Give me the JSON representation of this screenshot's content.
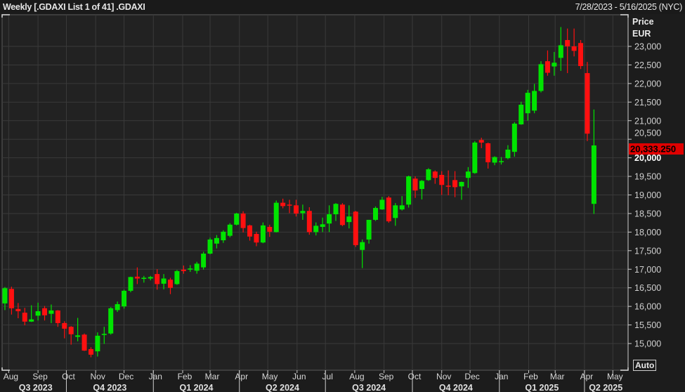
{
  "header": {
    "title": "Weekly [.GDAXI List 1 of 41] .GDAXI",
    "range": "7/28/2023 - 5/16/2025 (NYC)"
  },
  "axis": {
    "label_line1": "Price",
    "label_line2": "EUR",
    "auto_button": "Auto"
  },
  "colors": {
    "up": "#00e400",
    "down": "#ff1010",
    "background": "#1c1c1c",
    "plot": "#222222",
    "grid": "#3a3a3a",
    "price_tag": "#e00000"
  },
  "chart_data": {
    "type": "candlestick",
    "interval": "weekly",
    "start_date": "2023-07-28",
    "ylim": [
      14560,
      23680
    ],
    "yticks": [
      15000,
      15500,
      16000,
      16500,
      17000,
      17500,
      18000,
      18500,
      19000,
      19500,
      20000,
      20500,
      21000,
      21500,
      22000,
      22500,
      23000
    ],
    "ytick_labels": [
      "15,000",
      "15,500",
      "16,000",
      "16,500",
      "17,000",
      "17,500",
      "18,000",
      "18,500",
      "19,000",
      "19,500",
      "20,000",
      "20,500",
      "21,000",
      "21,500",
      "22,000",
      "22,500",
      "23,000"
    ],
    "last_price_label": "20,333.250",
    "last_price": 20333.25,
    "grid": true,
    "months": [
      {
        "label": "Aug",
        "date": "2023-08-01"
      },
      {
        "label": "Sep",
        "date": "2023-09-01"
      },
      {
        "label": "Oct",
        "date": "2023-10-01"
      },
      {
        "label": "Nov",
        "date": "2023-11-01"
      },
      {
        "label": "Dec",
        "date": "2023-12-01"
      },
      {
        "label": "Jan",
        "date": "2024-01-01"
      },
      {
        "label": "Feb",
        "date": "2024-02-01"
      },
      {
        "label": "Mar",
        "date": "2024-03-01"
      },
      {
        "label": "Apr",
        "date": "2024-04-01"
      },
      {
        "label": "May",
        "date": "2024-05-01"
      },
      {
        "label": "Jun",
        "date": "2024-06-01"
      },
      {
        "label": "Jul",
        "date": "2024-07-01"
      },
      {
        "label": "Aug",
        "date": "2024-08-01"
      },
      {
        "label": "Sep",
        "date": "2024-09-01"
      },
      {
        "label": "Oct",
        "date": "2024-10-01"
      },
      {
        "label": "Nov",
        "date": "2024-11-01"
      },
      {
        "label": "Dec",
        "date": "2024-12-01"
      },
      {
        "label": "Jan",
        "date": "2025-01-01"
      },
      {
        "label": "Feb",
        "date": "2025-02-01"
      },
      {
        "label": "Mar",
        "date": "2025-03-01"
      },
      {
        "label": "Apr",
        "date": "2025-04-01"
      },
      {
        "label": "May",
        "date": "2025-05-01"
      }
    ],
    "quarters": [
      {
        "label": "Q3 2023",
        "start": "2023-07-28",
        "end": "2023-10-01"
      },
      {
        "label": "Q4 2023",
        "start": "2023-10-01",
        "end": "2024-01-01"
      },
      {
        "label": "Q1 2024",
        "start": "2024-01-01",
        "end": "2024-04-01"
      },
      {
        "label": "Q2 2024",
        "start": "2024-04-01",
        "end": "2024-07-01"
      },
      {
        "label": "Q3 2024",
        "start": "2024-07-01",
        "end": "2024-10-01"
      },
      {
        "label": "Q4 2024",
        "start": "2024-10-01",
        "end": "2025-01-01"
      },
      {
        "label": "Q1 2025",
        "start": "2025-01-01",
        "end": "2025-04-01"
      },
      {
        "label": "Q2 2025",
        "start": "2025-04-01",
        "end": "2025-05-16"
      }
    ],
    "ohlc_fields": [
      "open",
      "high",
      "low",
      "close"
    ],
    "ohlc": [
      [
        16080,
        16520,
        15900,
        16490
      ],
      [
        16470,
        16530,
        15780,
        15950
      ],
      [
        15930,
        16090,
        15680,
        15870
      ],
      [
        15830,
        15960,
        15490,
        15590
      ],
      [
        15590,
        16030,
        15580,
        15650
      ],
      [
        15750,
        16100,
        15620,
        15870
      ],
      [
        15950,
        16010,
        15620,
        15760
      ],
      [
        15800,
        16050,
        15550,
        15890
      ],
      [
        15890,
        15900,
        15450,
        15550
      ],
      [
        15550,
        15600,
        15140,
        15400
      ],
      [
        15450,
        15470,
        14970,
        15250
      ],
      [
        15180,
        15690,
        15060,
        15220
      ],
      [
        15240,
        15270,
        14800,
        14810
      ],
      [
        14850,
        14900,
        14630,
        14700
      ],
      [
        14790,
        15300,
        14650,
        15210
      ],
      [
        15230,
        15450,
        14990,
        15260
      ],
      [
        15270,
        15980,
        15240,
        15950
      ],
      [
        15900,
        16130,
        15850,
        16060
      ],
      [
        16000,
        16450,
        15940,
        16420
      ],
      [
        16420,
        16800,
        16380,
        16790
      ],
      [
        16800,
        17050,
        16600,
        16750
      ],
      [
        16740,
        16820,
        16640,
        16770
      ],
      [
        16750,
        16820,
        16700,
        16790
      ],
      [
        16870,
        17000,
        16450,
        16600
      ],
      [
        16610,
        16870,
        16460,
        16750
      ],
      [
        16720,
        16770,
        16330,
        16500
      ],
      [
        16600,
        16980,
        16580,
        16950
      ],
      [
        16990,
        17100,
        16880,
        16950
      ],
      [
        16990,
        17110,
        16930,
        17020
      ],
      [
        16960,
        17200,
        16880,
        17150
      ],
      [
        17050,
        17470,
        16990,
        17420
      ],
      [
        17420,
        17850,
        17400,
        17800
      ],
      [
        17690,
        17920,
        17560,
        17840
      ],
      [
        17780,
        18050,
        17710,
        18010
      ],
      [
        17900,
        18240,
        17860,
        18200
      ],
      [
        18200,
        18520,
        18180,
        18500
      ],
      [
        18500,
        18560,
        17990,
        18110
      ],
      [
        18180,
        18200,
        17770,
        17880
      ],
      [
        17950,
        18010,
        17620,
        17720
      ],
      [
        17720,
        18260,
        17700,
        18180
      ],
      [
        18140,
        18200,
        17870,
        18010
      ],
      [
        18000,
        18850,
        17990,
        18790
      ],
      [
        18790,
        18900,
        18640,
        18700
      ],
      [
        18740,
        18870,
        18510,
        18720
      ],
      [
        18720,
        18870,
        18420,
        18500
      ],
      [
        18510,
        18740,
        18330,
        18570
      ],
      [
        18570,
        18670,
        17930,
        18000
      ],
      [
        18000,
        18260,
        17910,
        18170
      ],
      [
        18140,
        18390,
        18000,
        18210
      ],
      [
        18230,
        18720,
        18000,
        18480
      ],
      [
        18480,
        18780,
        18300,
        18760
      ],
      [
        18740,
        18780,
        18160,
        18190
      ],
      [
        18270,
        18720,
        18100,
        18420
      ],
      [
        18550,
        18570,
        17600,
        17650
      ],
      [
        17520,
        17800,
        17030,
        17730
      ],
      [
        17800,
        18330,
        17690,
        18330
      ],
      [
        18330,
        18690,
        18300,
        18650
      ],
      [
        18610,
        18950,
        18600,
        18870
      ],
      [
        18930,
        18970,
        18250,
        18290
      ],
      [
        18380,
        18780,
        18170,
        18720
      ],
      [
        18610,
        18970,
        18580,
        18720
      ],
      [
        18740,
        19520,
        18660,
        19500
      ],
      [
        19440,
        19500,
        18920,
        19120
      ],
      [
        19160,
        19400,
        18880,
        19380
      ],
      [
        19400,
        19720,
        19380,
        19690
      ],
      [
        19630,
        19660,
        19300,
        19460
      ],
      [
        19540,
        19640,
        19000,
        19270
      ],
      [
        19250,
        19660,
        18990,
        19230
      ],
      [
        19400,
        19640,
        18940,
        19210
      ],
      [
        19230,
        19360,
        18870,
        19350
      ],
      [
        19460,
        19750,
        19190,
        19630
      ],
      [
        19590,
        20450,
        19570,
        20410
      ],
      [
        20480,
        20540,
        20260,
        20410
      ],
      [
        20390,
        20410,
        19710,
        19880
      ],
      [
        19870,
        20040,
        19800,
        20020
      ],
      [
        19900,
        20020,
        19820,
        19910
      ],
      [
        19990,
        20340,
        19960,
        20220
      ],
      [
        20160,
        20960,
        20030,
        20920
      ],
      [
        20900,
        21510,
        20890,
        21430
      ],
      [
        21200,
        21830,
        21000,
        21750
      ],
      [
        21270,
        21990,
        21200,
        21800
      ],
      [
        21800,
        22600,
        21760,
        22520
      ],
      [
        22600,
        22890,
        22210,
        22290
      ],
      [
        22460,
        22850,
        22210,
        22560
      ],
      [
        22690,
        23520,
        22340,
        23030
      ],
      [
        23170,
        23480,
        22280,
        23000
      ],
      [
        23000,
        23480,
        22730,
        22880
      ],
      [
        23090,
        23170,
        22390,
        22470
      ],
      [
        22280,
        22580,
        20450,
        20650
      ],
      [
        18760,
        21300,
        18490,
        20333.25
      ]
    ]
  }
}
